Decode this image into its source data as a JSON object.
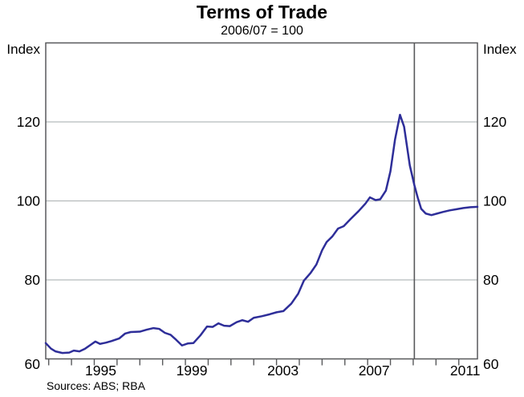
{
  "header": {
    "title": "Terms of Trade",
    "subtitle": "2006/07 = 100"
  },
  "axis_unit": "Index",
  "footer": {
    "sources": "Sources: ABS; RBA"
  },
  "colors": {
    "line": "#2e2e99",
    "grid": "#b5babc",
    "axis": "#58595b",
    "reference_line": "#58595b",
    "text": "#000000",
    "background": "#ffffff"
  },
  "chart_data": {
    "type": "line",
    "title": "Terms of Trade",
    "subtitle": "2006/07 = 100",
    "ylabel_left": "Index",
    "ylabel_right": "Index",
    "x_range": [
      1992.87,
      2011.82
    ],
    "y_range": [
      60,
      140
    ],
    "y_gridlines": [
      80,
      100,
      120
    ],
    "y_tick_labels": [
      "60",
      "80",
      "100",
      "120"
    ],
    "y_tick_values": [
      60,
      80,
      100,
      120
    ],
    "x_minor_tick_step_years": 1,
    "x_minor_ticks_start": 1993,
    "x_minor_ticks_end": 2011,
    "x_label_years": [
      1995,
      1999,
      2003,
      2007,
      2011
    ],
    "x_label_texts": [
      "1995",
      "1999",
      "2003",
      "2007",
      "2011"
    ],
    "vertical_reference_line_x": 2009.05,
    "grid": "horizontal-only",
    "legend": "none",
    "series": [
      {
        "name": "Terms of trade (2006/07 = 100)",
        "points": [
          [
            1992.87,
            64.0
          ],
          [
            1993.1,
            62.6
          ],
          [
            1993.3,
            61.9
          ],
          [
            1993.6,
            61.5
          ],
          [
            1993.9,
            61.6
          ],
          [
            1994.1,
            62.1
          ],
          [
            1994.35,
            61.9
          ],
          [
            1994.6,
            62.6
          ],
          [
            1994.85,
            63.6
          ],
          [
            1995.05,
            64.4
          ],
          [
            1995.25,
            63.8
          ],
          [
            1995.5,
            64.1
          ],
          [
            1995.75,
            64.5
          ],
          [
            1996.1,
            65.2
          ],
          [
            1996.35,
            66.4
          ],
          [
            1996.6,
            66.8
          ],
          [
            1997.0,
            66.9
          ],
          [
            1997.3,
            67.4
          ],
          [
            1997.6,
            67.8
          ],
          [
            1997.85,
            67.6
          ],
          [
            1998.1,
            66.6
          ],
          [
            1998.35,
            66.1
          ],
          [
            1998.6,
            64.8
          ],
          [
            1998.85,
            63.4
          ],
          [
            1999.1,
            63.9
          ],
          [
            1999.35,
            64.0
          ],
          [
            1999.65,
            65.9
          ],
          [
            1999.95,
            68.2
          ],
          [
            2000.2,
            68.1
          ],
          [
            2000.45,
            69.0
          ],
          [
            2000.7,
            68.4
          ],
          [
            2000.95,
            68.3
          ],
          [
            2001.25,
            69.3
          ],
          [
            2001.5,
            69.8
          ],
          [
            2001.75,
            69.4
          ],
          [
            2002.0,
            70.4
          ],
          [
            2002.35,
            70.8
          ],
          [
            2002.7,
            71.3
          ],
          [
            2003.0,
            71.8
          ],
          [
            2003.3,
            72.1
          ],
          [
            2003.65,
            74.0
          ],
          [
            2003.95,
            76.5
          ],
          [
            2004.2,
            79.8
          ],
          [
            2004.5,
            81.8
          ],
          [
            2004.75,
            83.9
          ],
          [
            2005.0,
            87.5
          ],
          [
            2005.2,
            89.6
          ],
          [
            2005.45,
            91.0
          ],
          [
            2005.7,
            93.0
          ],
          [
            2005.95,
            93.6
          ],
          [
            2006.25,
            95.4
          ],
          [
            2006.6,
            97.4
          ],
          [
            2006.9,
            99.3
          ],
          [
            2007.1,
            100.9
          ],
          [
            2007.35,
            100.2
          ],
          [
            2007.55,
            100.4
          ],
          [
            2007.8,
            102.6
          ],
          [
            2008.0,
            107.5
          ],
          [
            2008.2,
            115.5
          ],
          [
            2008.42,
            121.8
          ],
          [
            2008.6,
            118.8
          ],
          [
            2008.85,
            109.0
          ],
          [
            2009.05,
            104.0
          ],
          [
            2009.2,
            100.8
          ],
          [
            2009.35,
            98.0
          ],
          [
            2009.55,
            96.8
          ],
          [
            2009.8,
            96.4
          ],
          [
            2010.05,
            96.8
          ],
          [
            2010.3,
            97.2
          ],
          [
            2010.6,
            97.6
          ],
          [
            2010.9,
            97.9
          ],
          [
            2011.2,
            98.2
          ],
          [
            2011.5,
            98.4
          ],
          [
            2011.82,
            98.5
          ]
        ]
      }
    ]
  }
}
